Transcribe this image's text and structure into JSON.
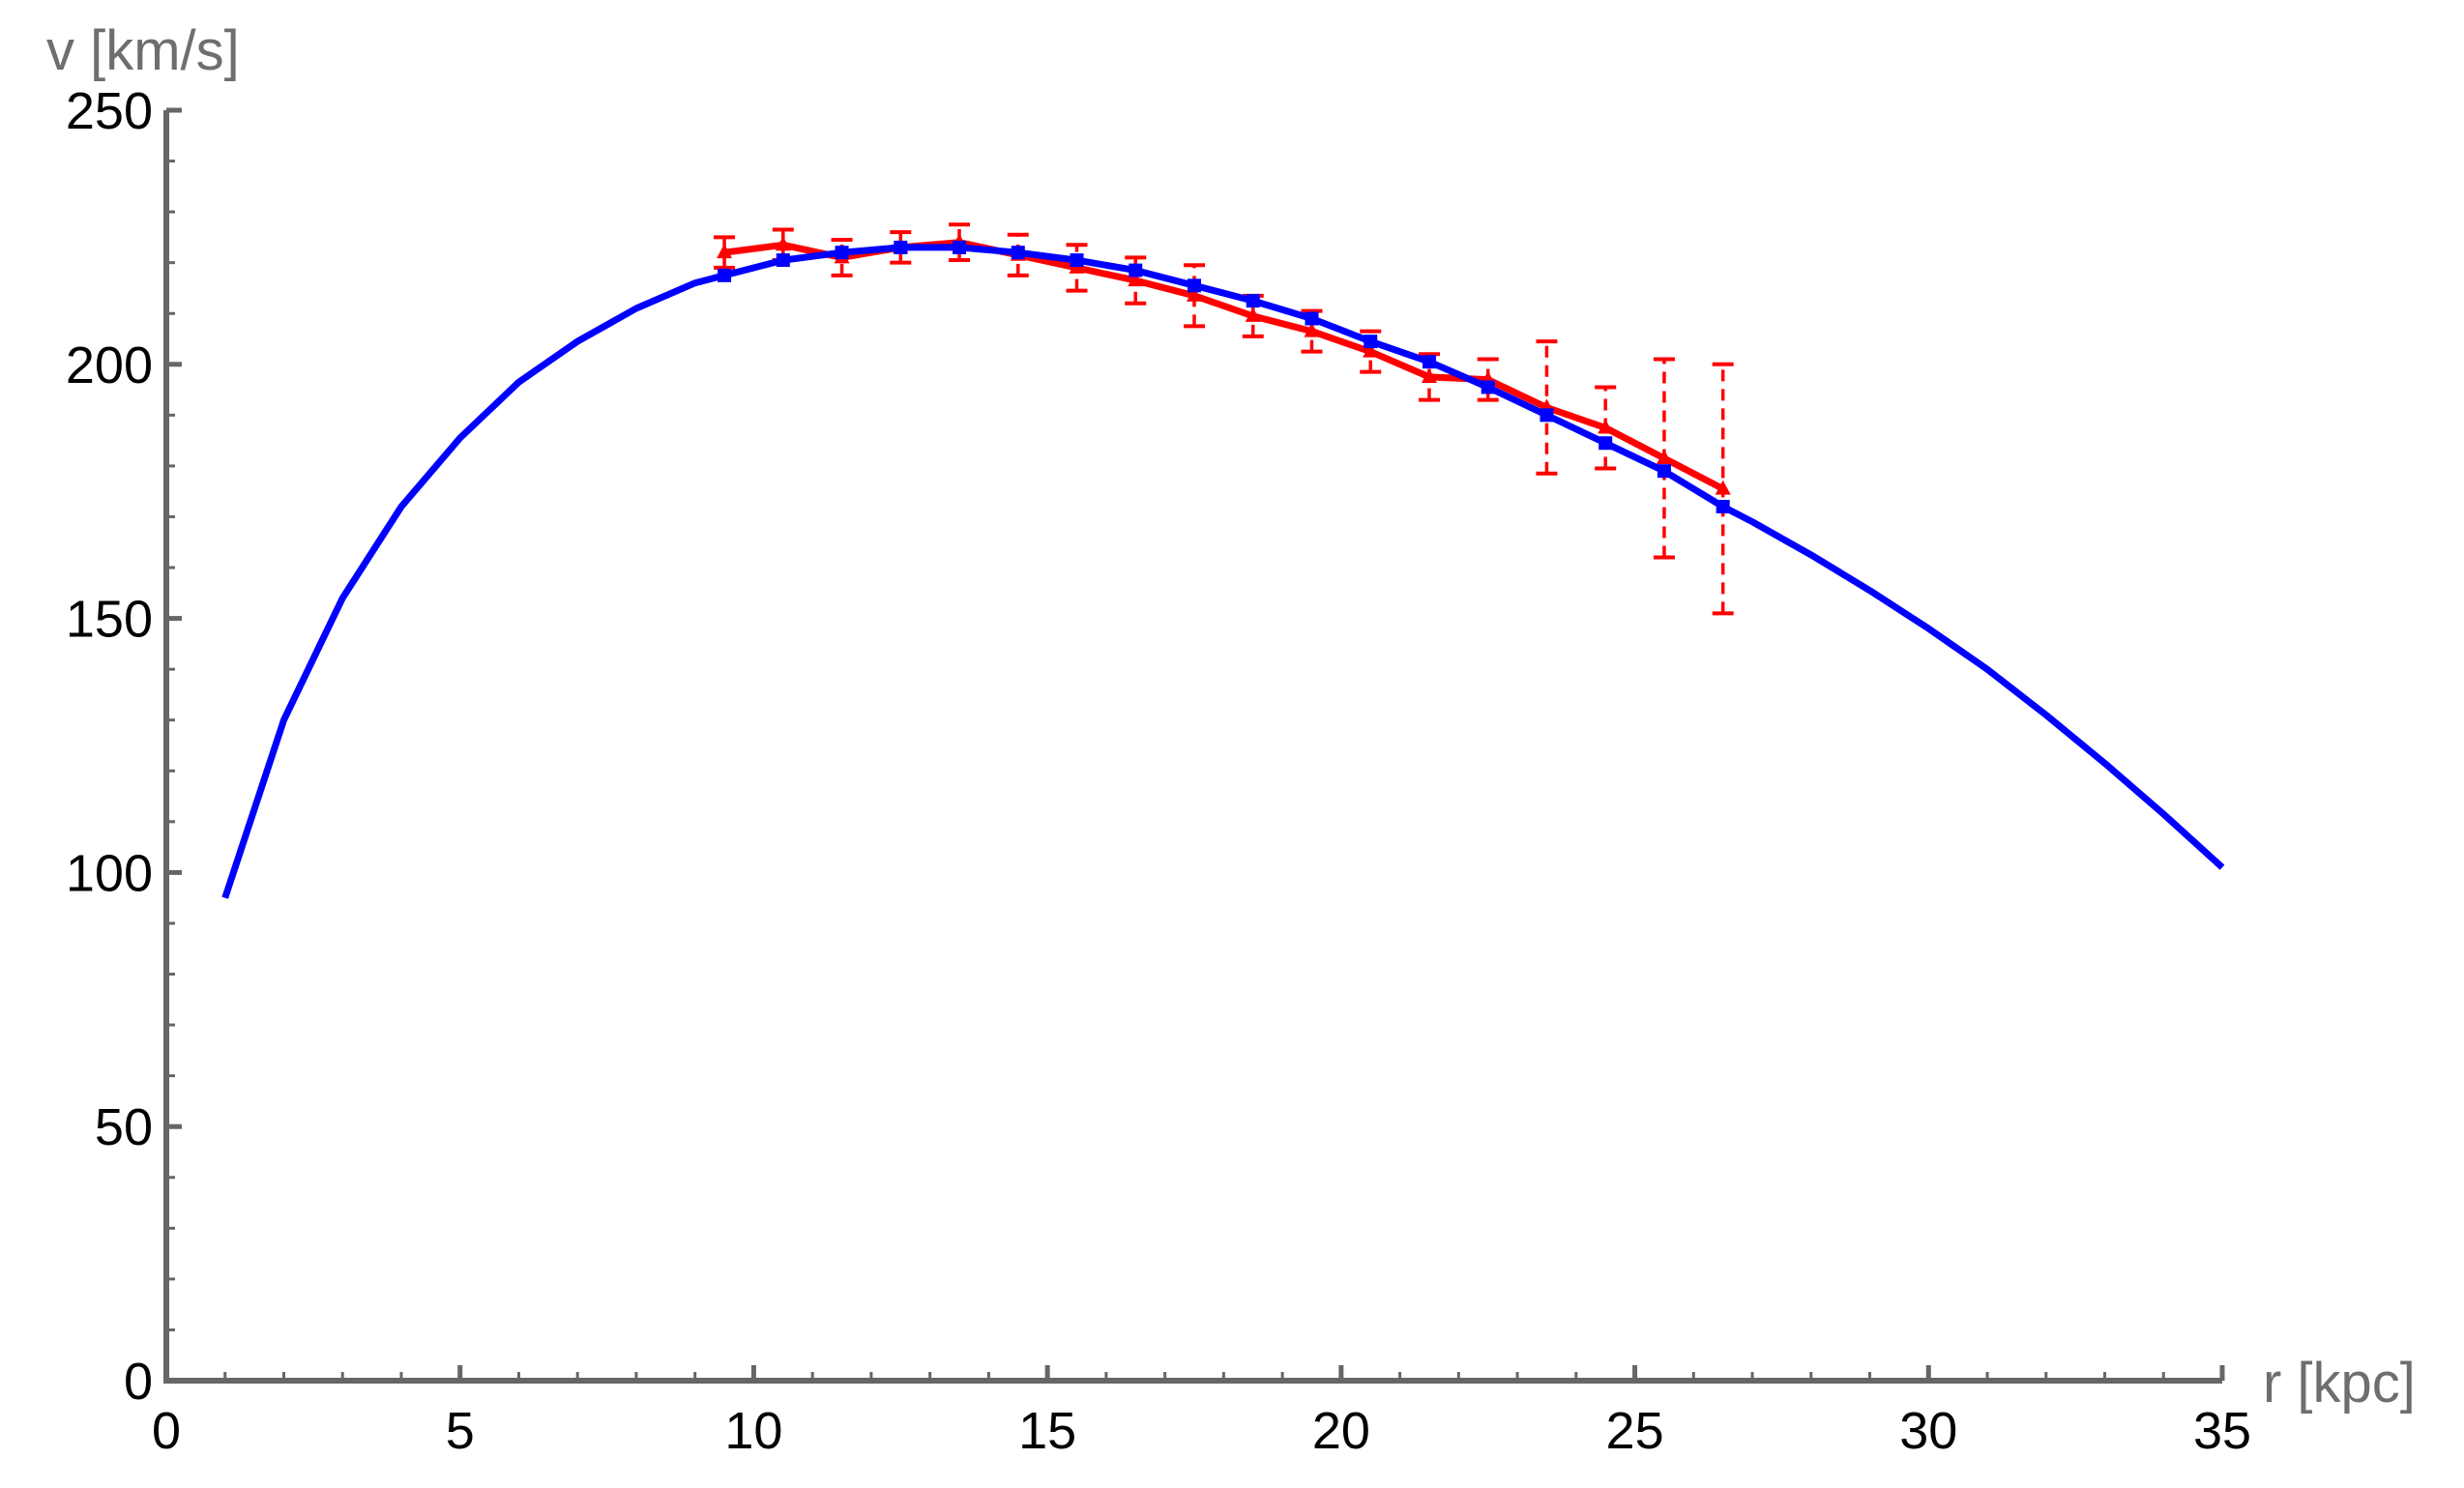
{
  "chart_data": {
    "type": "line",
    "title": "",
    "xlabel": "r [kpc]",
    "ylabel": "v [km/s]",
    "xlim": [
      0,
      35
    ],
    "ylim": [
      0,
      250
    ],
    "xticks": [
      0,
      5,
      10,
      15,
      20,
      25,
      30,
      35
    ],
    "yticks": [
      0,
      50,
      100,
      150,
      200,
      250
    ],
    "grid": false,
    "colors": {
      "observed": "#ff0000",
      "model": "#0000ff",
      "axes": "#666666"
    },
    "series": [
      {
        "x": [
          1,
          2,
          3,
          4,
          5,
          6,
          7,
          8,
          9,
          9.5,
          10.5,
          11.5,
          12.5,
          13.5,
          14.5,
          15.5,
          16.5,
          17.5,
          18.5,
          19.5,
          20.5,
          21.5,
          22.5,
          23.5,
          24.5,
          25.5,
          26.5,
          27,
          28,
          29,
          30,
          31,
          32,
          33,
          34,
          35
        ],
        "y": [
          95,
          130,
          154,
          172,
          185.5,
          196.5,
          204.5,
          211,
          216,
          217.5,
          220.5,
          222,
          223,
          223,
          222,
          220.5,
          218.5,
          215.5,
          212.5,
          209,
          204.5,
          200.5,
          195.5,
          190,
          184.5,
          179,
          172,
          169,
          162.5,
          155.5,
          148,
          140,
          131,
          121.5,
          111.5,
          101
        ],
        "markers_x": [
          9.5,
          10.5,
          11.5,
          12.5,
          13.5,
          14.5,
          15.5,
          16.5,
          17.5,
          18.5,
          19.5,
          20.5,
          21.5,
          22.5,
          23.5,
          24.5,
          25.5,
          26.5
        ]
      },
      {
        "x": [
          9.5,
          10.5,
          11.5,
          12.5,
          13.5,
          14.5,
          15.5,
          16.5,
          17.5,
          18.5,
          19.5,
          20.5,
          21.5,
          22.5,
          23.5,
          24.5,
          25.5,
          26.5
        ],
        "y": [
          222,
          223.5,
          221,
          223,
          224,
          221.5,
          219,
          216.5,
          213.5,
          209.5,
          206.5,
          202.5,
          197.5,
          197,
          191.5,
          187.5,
          181.5,
          175.5
        ],
        "err": [
          3,
          3,
          3.5,
          3,
          3.5,
          4,
          4.5,
          4.5,
          6,
          4,
          4,
          4,
          4.5,
          4,
          13,
          8,
          19.5,
          24.5
        ]
      }
    ]
  }
}
